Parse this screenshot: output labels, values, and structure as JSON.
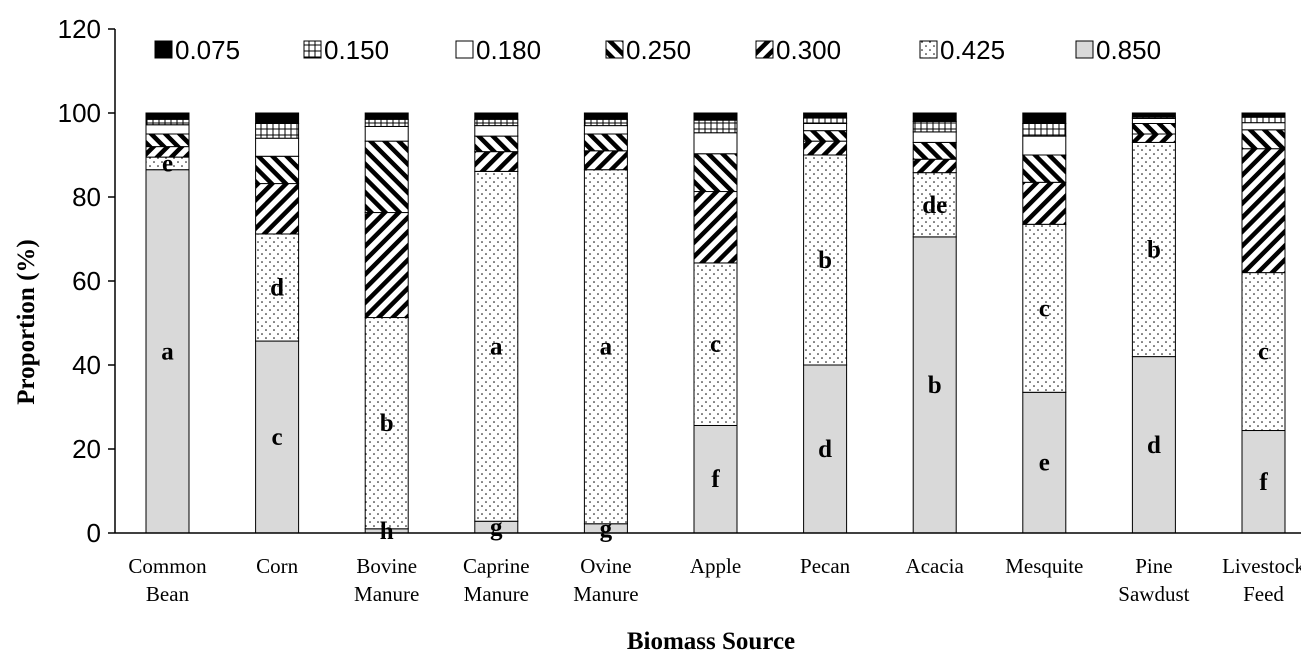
{
  "chart_data": {
    "type": "bar",
    "stacked": true,
    "xlabel": "Biomass Source",
    "ylabel": "Proportion (%)",
    "ylim": [
      0,
      120
    ],
    "yticks": [
      0,
      20,
      40,
      60,
      80,
      100,
      120
    ],
    "grid": false,
    "legend": "top",
    "categories": [
      [
        "Common",
        "Bean"
      ],
      [
        "Corn"
      ],
      [
        "Bovine",
        "Manure"
      ],
      [
        "Caprine",
        "Manure"
      ],
      [
        "Ovine",
        "Manure"
      ],
      [
        "Apple"
      ],
      [
        "Pecan"
      ],
      [
        "Acacia"
      ],
      [
        "Mesquite"
      ],
      [
        "Pine",
        "Sawdust"
      ],
      [
        "Livestock",
        "Feed"
      ]
    ],
    "series": [
      {
        "name": "0.850",
        "pattern": "gray",
        "values": [
          86.5,
          45.7,
          1.0,
          2.8,
          2.2,
          25.6,
          40.0,
          70.5,
          33.5,
          42.0,
          24.4
        ]
      },
      {
        "name": "0.425",
        "pattern": "dots",
        "values": [
          3.0,
          25.5,
          50.3,
          83.3,
          84.3,
          38.7,
          50.0,
          15.3,
          40.0,
          51.0,
          37.6
        ]
      },
      {
        "name": "0.300",
        "pattern": "forward-hatch",
        "values": [
          2.5,
          12.0,
          25.0,
          4.7,
          4.5,
          17.0,
          3.3,
          3.2,
          10.0,
          2.0,
          29.5
        ]
      },
      {
        "name": "0.250",
        "pattern": "back-hatch",
        "values": [
          3.0,
          6.5,
          17.0,
          3.7,
          4.0,
          9.0,
          2.5,
          4.0,
          6.5,
          2.5,
          4.5
        ]
      },
      {
        "name": "0.180",
        "pattern": "white",
        "values": [
          2.2,
          4.3,
          3.5,
          2.5,
          2.0,
          5.0,
          1.7,
          2.5,
          4.5,
          1.2,
          1.7
        ]
      },
      {
        "name": "0.150",
        "pattern": "grid",
        "values": [
          1.3,
          3.5,
          1.7,
          1.5,
          1.5,
          3.0,
          1.3,
          2.5,
          3.0,
          0.3,
          1.3
        ]
      },
      {
        "name": "0.075",
        "pattern": "black",
        "values": [
          1.5,
          2.5,
          1.5,
          1.5,
          1.5,
          1.7,
          1.2,
          2.0,
          2.5,
          1.0,
          1.0
        ]
      }
    ],
    "annotations": [
      {
        "category": 0,
        "series": "0.850",
        "text": "a"
      },
      {
        "category": 0,
        "series": "0.425",
        "text": "e"
      },
      {
        "category": 1,
        "series": "0.850",
        "text": "c"
      },
      {
        "category": 1,
        "series": "0.425",
        "text": "d"
      },
      {
        "category": 2,
        "series": "0.850",
        "text": "h"
      },
      {
        "category": 2,
        "series": "0.425",
        "text": "b"
      },
      {
        "category": 3,
        "series": "0.850",
        "text": "g"
      },
      {
        "category": 3,
        "series": "0.425",
        "text": "a"
      },
      {
        "category": 4,
        "series": "0.850",
        "text": "g"
      },
      {
        "category": 4,
        "series": "0.425",
        "text": "a"
      },
      {
        "category": 5,
        "series": "0.850",
        "text": "f"
      },
      {
        "category": 5,
        "series": "0.425",
        "text": "c"
      },
      {
        "category": 6,
        "series": "0.850",
        "text": "d"
      },
      {
        "category": 6,
        "series": "0.425",
        "text": "b"
      },
      {
        "category": 7,
        "series": "0.850",
        "text": "b"
      },
      {
        "category": 7,
        "series": "0.425",
        "text": "de"
      },
      {
        "category": 8,
        "series": "0.850",
        "text": "e"
      },
      {
        "category": 8,
        "series": "0.425",
        "text": "c"
      },
      {
        "category": 9,
        "series": "0.850",
        "text": "d"
      },
      {
        "category": 9,
        "series": "0.425",
        "text": "b"
      },
      {
        "category": 10,
        "series": "0.850",
        "text": "f"
      },
      {
        "category": 10,
        "series": "0.425",
        "text": "c"
      }
    ]
  }
}
